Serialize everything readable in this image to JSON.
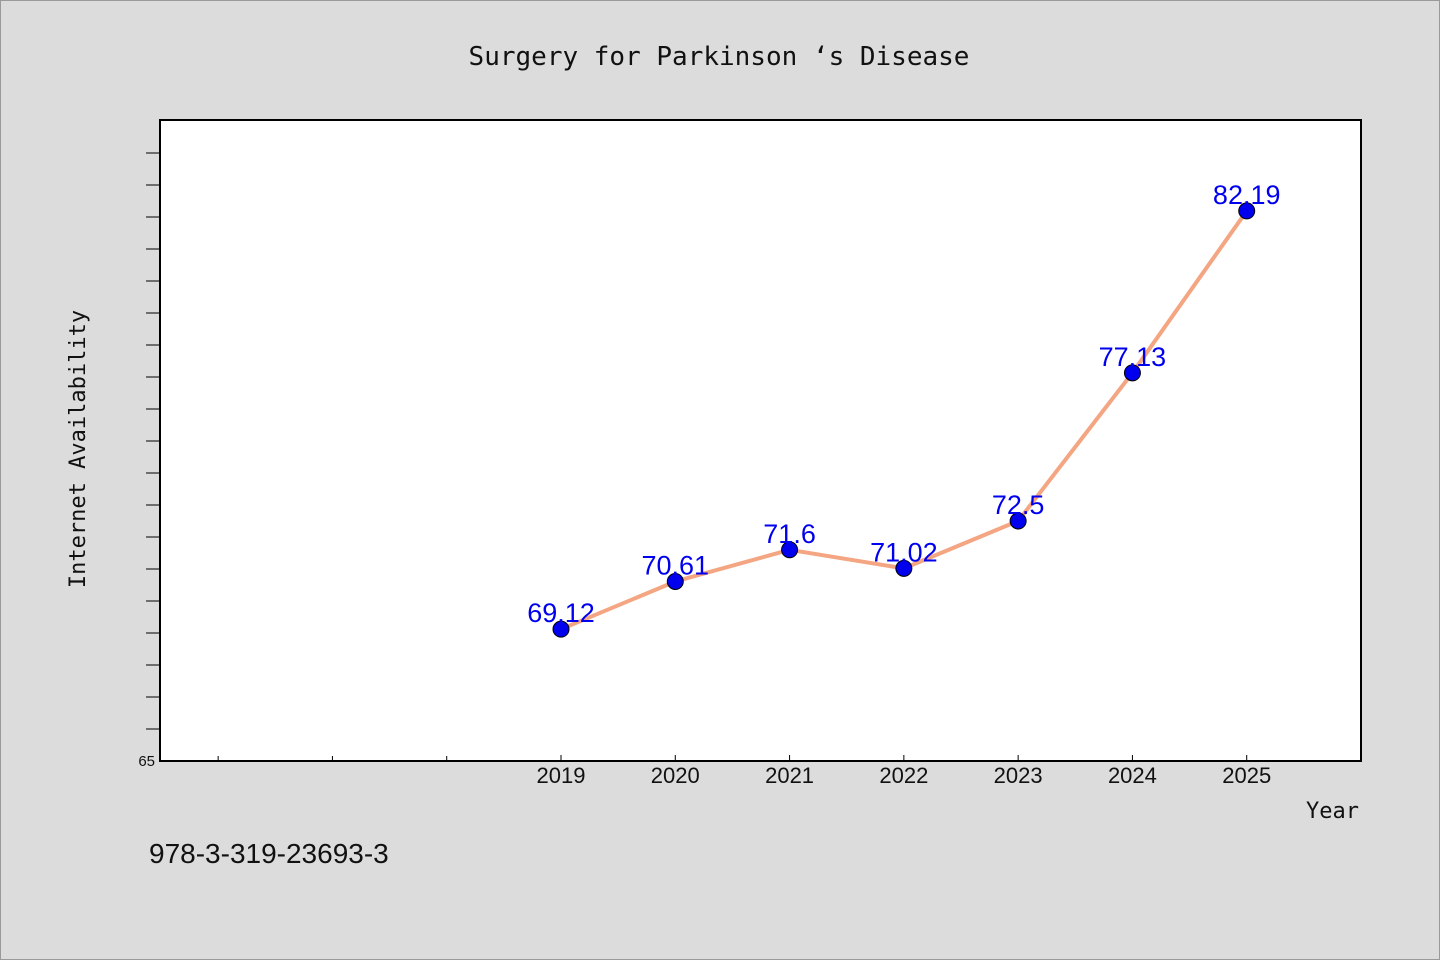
{
  "chart_data": {
    "type": "line",
    "title": "Surgery for Parkinson ‘s Disease",
    "xlabel": "Year",
    "ylabel": "Internet Availability",
    "categories": [
      "2019",
      "2020",
      "2021",
      "2022",
      "2023",
      "2024",
      "2025"
    ],
    "series": [
      {
        "values": [
          69.12,
          70.61,
          71.6,
          71.02,
          72.5,
          77.13,
          82.19
        ],
        "labels": [
          "69.12",
          "70.61",
          "71.6",
          "71.02",
          "72.5",
          "77.13",
          "82.19"
        ]
      }
    ],
    "ylim": [
      65,
      85
    ],
    "yticks_labeled": [
      "65"
    ],
    "y_minor_tick_step": 1,
    "x_extra_ticks": 3,
    "grid": false,
    "colors": {
      "line": "#f4a582",
      "marker": "#0000ee",
      "label": "#0000ee",
      "plot_background": "#ffffff",
      "figure_background": "#dcdcdc"
    }
  },
  "footer": {
    "isbn": "978-3-319-23693-3"
  }
}
